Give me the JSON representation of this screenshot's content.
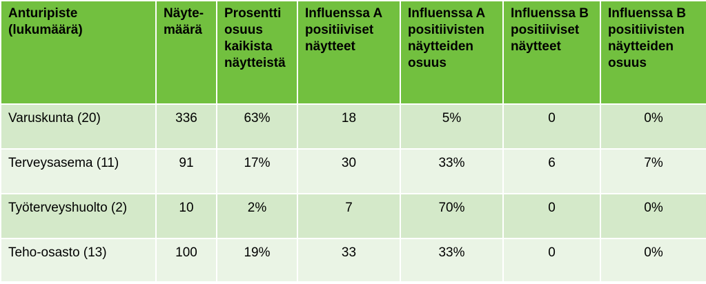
{
  "table": {
    "headers": [
      "Anturipiste\n(lukumäärä)",
      "Näyte-\nmäärä",
      "Prosentti\nosuus\nkaikista\nnäytteistä",
      "Influenssa A\npositiiviset\nnäytteet",
      "Influenssa A\npositiivisten\nnäytteiden\nosuus",
      "Influenssa B\npositiiviset\nnäytteet",
      "Influenssa B\npositiivisten\nnäytteiden\nosuus"
    ],
    "rows": [
      [
        "Varuskunta (20)",
        "336",
        "63%",
        "18",
        "5%",
        "0",
        "0%"
      ],
      [
        "Terveysasema (11)",
        "91",
        "17%",
        "30",
        "33%",
        "6",
        "7%"
      ],
      [
        "Työterveyshuolto (2)",
        "10",
        "2%",
        "7",
        "70%",
        "0",
        "0%"
      ],
      [
        "Teho-osasto (13)",
        "100",
        "19%",
        "33",
        "33%",
        "0",
        "0%"
      ]
    ]
  },
  "colors": {
    "header_bg": "#72c03f",
    "row_odd_bg": "#d4e9c9",
    "row_even_bg": "#eaf4e5",
    "border": "#ffffff"
  }
}
